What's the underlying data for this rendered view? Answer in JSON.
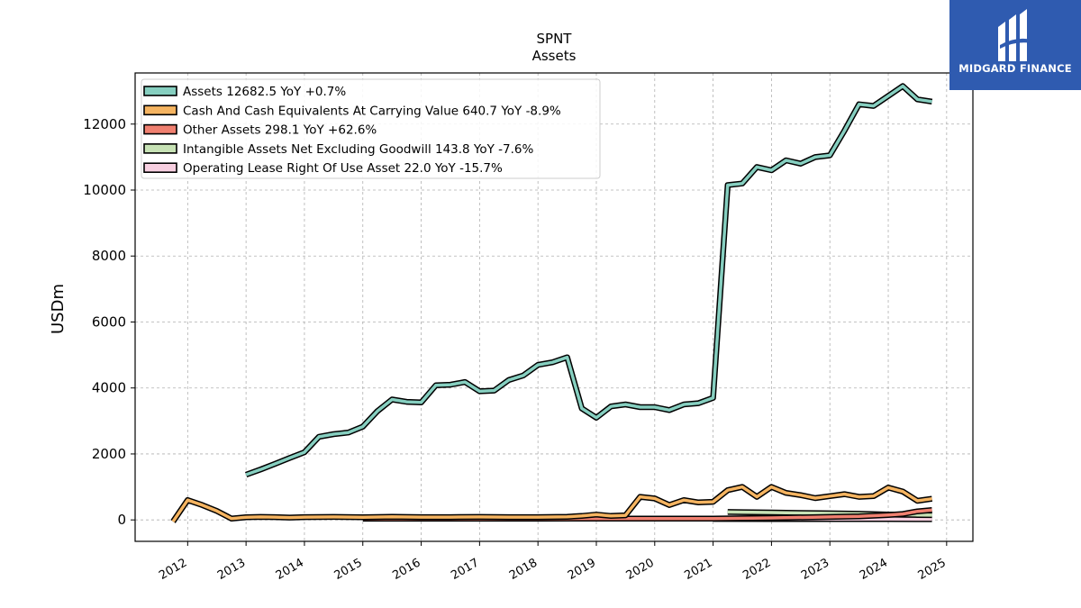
{
  "brand": {
    "name": "MIDGARD FINANCE",
    "bg_color": "#2f5bb0"
  },
  "chart_data": {
    "type": "line",
    "title": "SPNT",
    "subtitle": "Assets",
    "ylabel": "USDm",
    "xlabel": "",
    "xlim": [
      2011.1,
      2025.45
    ],
    "ylim": [
      -650,
      13550
    ],
    "yticks": [
      0,
      2000,
      4000,
      6000,
      8000,
      10000,
      12000
    ],
    "xticks": [
      2012,
      2013,
      2014,
      2015,
      2016,
      2017,
      2018,
      2019,
      2020,
      2021,
      2022,
      2023,
      2024,
      2025
    ],
    "grid": true,
    "legend_position": "top-left",
    "series": [
      {
        "name": "Assets",
        "legend": "Assets  12682.5 YoY +0.7%",
        "color": "#86cfc0",
        "points": [
          [
            2013.0,
            1370
          ],
          [
            2013.25,
            1530
          ],
          [
            2013.5,
            1700
          ],
          [
            2013.75,
            1880
          ],
          [
            2014.0,
            2050
          ],
          [
            2014.25,
            2520
          ],
          [
            2014.5,
            2600
          ],
          [
            2014.75,
            2650
          ],
          [
            2015.0,
            2830
          ],
          [
            2015.25,
            3300
          ],
          [
            2015.5,
            3650
          ],
          [
            2015.75,
            3580
          ],
          [
            2016.0,
            3560
          ],
          [
            2016.25,
            4080
          ],
          [
            2016.5,
            4100
          ],
          [
            2016.75,
            4180
          ],
          [
            2017.0,
            3900
          ],
          [
            2017.25,
            3920
          ],
          [
            2017.5,
            4240
          ],
          [
            2017.75,
            4380
          ],
          [
            2018.0,
            4700
          ],
          [
            2018.25,
            4780
          ],
          [
            2018.5,
            4930
          ],
          [
            2018.75,
            3380
          ],
          [
            2019.0,
            3100
          ],
          [
            2019.25,
            3440
          ],
          [
            2019.5,
            3500
          ],
          [
            2019.75,
            3420
          ],
          [
            2020.0,
            3420
          ],
          [
            2020.25,
            3330
          ],
          [
            2020.5,
            3500
          ],
          [
            2020.75,
            3540
          ],
          [
            2021.0,
            3700
          ],
          [
            2021.25,
            10150
          ],
          [
            2021.5,
            10200
          ],
          [
            2021.75,
            10700
          ],
          [
            2022.0,
            10600
          ],
          [
            2022.25,
            10900
          ],
          [
            2022.5,
            10800
          ],
          [
            2022.75,
            11000
          ],
          [
            2023.0,
            11050
          ],
          [
            2023.25,
            11800
          ],
          [
            2023.5,
            12600
          ],
          [
            2023.75,
            12550
          ],
          [
            2024.0,
            12850
          ],
          [
            2024.25,
            13150
          ],
          [
            2024.5,
            12750
          ],
          [
            2024.75,
            12682.5
          ]
        ]
      },
      {
        "name": "Cash And Cash Equivalents At Carrying Value",
        "legend": "Cash And Cash Equivalents At Carrying Value  640.7 YoY -8.9%",
        "color": "#f5b461",
        "points": [
          [
            2011.75,
            -50
          ],
          [
            2012.0,
            600
          ],
          [
            2012.25,
            450
          ],
          [
            2012.5,
            270
          ],
          [
            2012.75,
            40
          ],
          [
            2013.0,
            80
          ],
          [
            2013.25,
            90
          ],
          [
            2013.5,
            85
          ],
          [
            2013.75,
            70
          ],
          [
            2014.0,
            85
          ],
          [
            2014.5,
            90
          ],
          [
            2015.0,
            80
          ],
          [
            2015.5,
            95
          ],
          [
            2016.0,
            85
          ],
          [
            2016.5,
            85
          ],
          [
            2017.0,
            90
          ],
          [
            2017.5,
            85
          ],
          [
            2018.0,
            85
          ],
          [
            2018.5,
            95
          ],
          [
            2018.75,
            120
          ],
          [
            2019.0,
            160
          ],
          [
            2019.25,
            120
          ],
          [
            2019.5,
            140
          ],
          [
            2019.75,
            700
          ],
          [
            2020.0,
            650
          ],
          [
            2020.25,
            450
          ],
          [
            2020.5,
            600
          ],
          [
            2020.75,
            530
          ],
          [
            2021.0,
            550
          ],
          [
            2021.25,
            900
          ],
          [
            2021.5,
            1000
          ],
          [
            2021.75,
            700
          ],
          [
            2022.0,
            1000
          ],
          [
            2022.25,
            820
          ],
          [
            2022.5,
            750
          ],
          [
            2022.75,
            660
          ],
          [
            2023.0,
            720
          ],
          [
            2023.25,
            780
          ],
          [
            2023.5,
            700
          ],
          [
            2023.75,
            720
          ],
          [
            2024.0,
            980
          ],
          [
            2024.25,
            860
          ],
          [
            2024.5,
            580
          ],
          [
            2024.75,
            640.7
          ]
        ]
      },
      {
        "name": "Other Assets",
        "legend": "Other Assets  298.1 YoY +62.6%",
        "color": "#f08070",
        "points": [
          [
            2015.0,
            35
          ],
          [
            2016.0,
            35
          ],
          [
            2017.0,
            35
          ],
          [
            2018.0,
            35
          ],
          [
            2019.0,
            40
          ],
          [
            2020.0,
            40
          ],
          [
            2021.0,
            40
          ],
          [
            2022.0,
            60
          ],
          [
            2023.0,
            90
          ],
          [
            2023.5,
            110
          ],
          [
            2024.0,
            150
          ],
          [
            2024.25,
            180
          ],
          [
            2024.5,
            260
          ],
          [
            2024.75,
            298.1
          ]
        ]
      },
      {
        "name": "Intangible Assets Net Excluding Goodwill",
        "legend": "Intangible Assets Net Excluding Goodwill  143.8 YoY -7.6%",
        "color": "#c7e2b5",
        "points": [
          [
            2021.25,
            240
          ],
          [
            2021.5,
            235
          ],
          [
            2022.0,
            225
          ],
          [
            2022.5,
            210
          ],
          [
            2023.0,
            200
          ],
          [
            2023.5,
            185
          ],
          [
            2024.0,
            165
          ],
          [
            2024.5,
            150
          ],
          [
            2024.75,
            143.8
          ]
        ]
      },
      {
        "name": "Operating Lease Right Of Use Asset",
        "legend": "Operating Lease Right Of Use Asset  22.0 YoY -15.7%",
        "color": "#f7cfe0",
        "points": [
          [
            2021.0,
            30
          ],
          [
            2022.0,
            28
          ],
          [
            2023.0,
            26
          ],
          [
            2024.0,
            24
          ],
          [
            2024.75,
            22.0
          ]
        ]
      }
    ]
  }
}
